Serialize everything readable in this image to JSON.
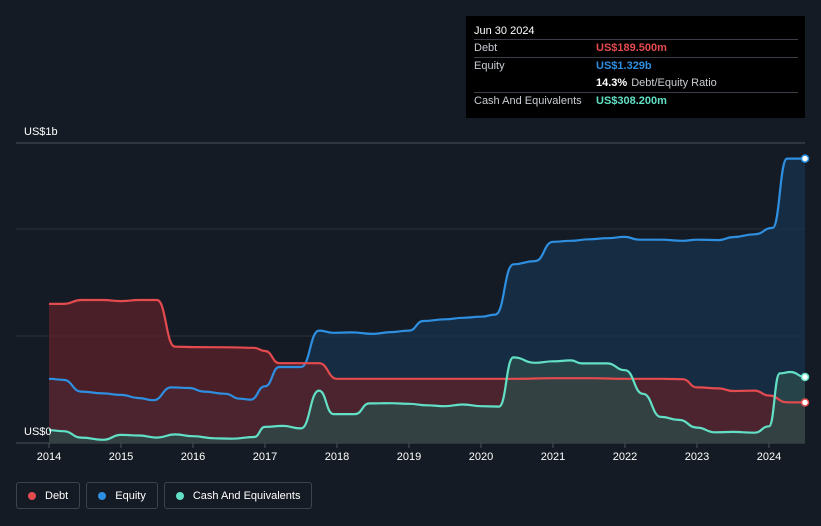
{
  "chart_data": {
    "type": "area",
    "title": "",
    "xlabel": "",
    "ylabel": "",
    "y_axis_top_label": "US$1b",
    "y_axis_zero_label": "US$0",
    "ylim": [
      0,
      1400
    ],
    "xlim": [
      2014,
      2024.5
    ],
    "x_tick_labels": [
      "2014",
      "2015",
      "2016",
      "2017",
      "2018",
      "2019",
      "2020",
      "2021",
      "2022",
      "2023",
      "2024"
    ],
    "x_ticks": [
      2014,
      2015,
      2016,
      2017,
      2018,
      2019,
      2020,
      2021,
      2022,
      2023,
      2024
    ],
    "gridlines_y": [
      0,
      500,
      1000
    ],
    "series": [
      {
        "name": "Equity",
        "key": "equity",
        "color": "#2e8fe0",
        "fill": "#16334e",
        "points": [
          [
            2014.0,
            300
          ],
          [
            2014.2,
            295
          ],
          [
            2014.45,
            240
          ],
          [
            2014.75,
            232
          ],
          [
            2015.0,
            225
          ],
          [
            2015.25,
            210
          ],
          [
            2015.45,
            200
          ],
          [
            2015.7,
            260
          ],
          [
            2015.95,
            257
          ],
          [
            2016.15,
            240
          ],
          [
            2016.45,
            230
          ],
          [
            2016.65,
            207
          ],
          [
            2016.8,
            203
          ],
          [
            2017.0,
            265
          ],
          [
            2017.2,
            355
          ],
          [
            2017.5,
            355
          ],
          [
            2017.75,
            525
          ],
          [
            2017.95,
            515
          ],
          [
            2018.2,
            517
          ],
          [
            2018.5,
            510
          ],
          [
            2018.75,
            518
          ],
          [
            2019.0,
            525
          ],
          [
            2019.2,
            570
          ],
          [
            2019.5,
            578
          ],
          [
            2019.75,
            585
          ],
          [
            2020.0,
            590
          ],
          [
            2020.2,
            600
          ],
          [
            2020.45,
            835
          ],
          [
            2020.75,
            850
          ],
          [
            2021.0,
            940
          ],
          [
            2021.25,
            945
          ],
          [
            2021.5,
            952
          ],
          [
            2021.75,
            957
          ],
          [
            2022.0,
            963
          ],
          [
            2022.2,
            950
          ],
          [
            2022.5,
            950
          ],
          [
            2022.8,
            945
          ],
          [
            2023.0,
            950
          ],
          [
            2023.3,
            948
          ],
          [
            2023.5,
            962
          ],
          [
            2023.8,
            975
          ],
          [
            2024.05,
            1005
          ],
          [
            2024.25,
            1329
          ],
          [
            2024.5,
            1329
          ]
        ]
      },
      {
        "name": "Debt",
        "key": "debt",
        "color": "#e44b4f",
        "fill": "#5e2228",
        "points": [
          [
            2014.0,
            650
          ],
          [
            2014.2,
            650
          ],
          [
            2014.45,
            668
          ],
          [
            2014.75,
            668
          ],
          [
            2015.0,
            663
          ],
          [
            2015.25,
            668
          ],
          [
            2015.5,
            668
          ],
          [
            2015.75,
            450
          ],
          [
            2016.0,
            448
          ],
          [
            2016.5,
            447
          ],
          [
            2016.85,
            445
          ],
          [
            2017.0,
            430
          ],
          [
            2017.2,
            373
          ],
          [
            2017.5,
            373
          ],
          [
            2017.75,
            373
          ],
          [
            2018.0,
            300
          ],
          [
            2018.5,
            300
          ],
          [
            2019.0,
            300
          ],
          [
            2019.5,
            300
          ],
          [
            2020.0,
            300
          ],
          [
            2020.5,
            300
          ],
          [
            2021.0,
            303
          ],
          [
            2021.5,
            303
          ],
          [
            2022.0,
            300
          ],
          [
            2022.5,
            300
          ],
          [
            2022.8,
            298
          ],
          [
            2023.0,
            260
          ],
          [
            2023.3,
            255
          ],
          [
            2023.5,
            243
          ],
          [
            2023.8,
            245
          ],
          [
            2024.0,
            222
          ],
          [
            2024.25,
            190
          ],
          [
            2024.5,
            189.5
          ]
        ]
      },
      {
        "name": "Cash And Equivalents",
        "key": "cash",
        "color": "#62e0c6",
        "fill": "#2c4b4b",
        "points": [
          [
            2014.0,
            60
          ],
          [
            2014.2,
            55
          ],
          [
            2014.45,
            25
          ],
          [
            2014.75,
            15
          ],
          [
            2015.0,
            38
          ],
          [
            2015.25,
            35
          ],
          [
            2015.5,
            25
          ],
          [
            2015.75,
            40
          ],
          [
            2016.0,
            32
          ],
          [
            2016.3,
            22
          ],
          [
            2016.55,
            20
          ],
          [
            2016.85,
            28
          ],
          [
            2017.0,
            75
          ],
          [
            2017.25,
            80
          ],
          [
            2017.5,
            68
          ],
          [
            2017.75,
            245
          ],
          [
            2017.95,
            135
          ],
          [
            2018.25,
            135
          ],
          [
            2018.45,
            185
          ],
          [
            2018.75,
            186
          ],
          [
            2019.0,
            183
          ],
          [
            2019.25,
            176
          ],
          [
            2019.5,
            172
          ],
          [
            2019.75,
            180
          ],
          [
            2020.0,
            172
          ],
          [
            2020.25,
            170
          ],
          [
            2020.45,
            400
          ],
          [
            2020.75,
            375
          ],
          [
            2021.0,
            382
          ],
          [
            2021.25,
            386
          ],
          [
            2021.4,
            372
          ],
          [
            2021.75,
            372
          ],
          [
            2022.0,
            340
          ],
          [
            2022.25,
            230
          ],
          [
            2022.5,
            122
          ],
          [
            2022.75,
            108
          ],
          [
            2023.0,
            72
          ],
          [
            2023.25,
            50
          ],
          [
            2023.5,
            52
          ],
          [
            2023.8,
            48
          ],
          [
            2024.0,
            78
          ],
          [
            2024.15,
            325
          ],
          [
            2024.3,
            332
          ],
          [
            2024.5,
            308.2
          ]
        ]
      }
    ],
    "legend": [
      {
        "name": "Debt",
        "color": "#e44b4f"
      },
      {
        "name": "Equity",
        "color": "#2e8fe0"
      },
      {
        "name": "Cash And Equivalents",
        "color": "#62e0c6"
      }
    ],
    "legend_position": "bottom-left"
  },
  "tooltip": {
    "date": "Jun 30 2024",
    "rows": [
      {
        "label": "Debt",
        "value": "US$189.500m",
        "color": "#e44b4f"
      },
      {
        "label": "Equity",
        "value": "US$1.329b",
        "color": "#2e8fe0"
      },
      {
        "label": "",
        "value": "14.3%",
        "sub": "Debt/Equity Ratio",
        "color": "#ffffff"
      },
      {
        "label": "Cash And Equivalents",
        "value": "US$308.200m",
        "color": "#62e0c6"
      }
    ]
  }
}
